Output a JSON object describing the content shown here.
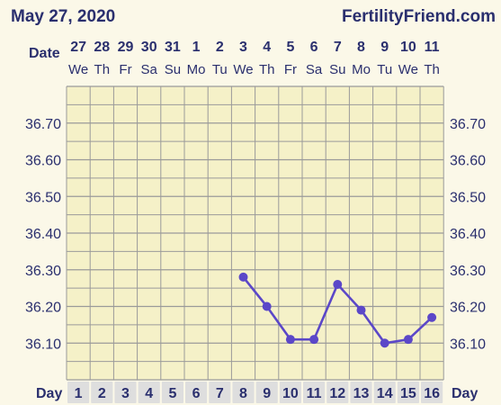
{
  "header": {
    "date": "May 27, 2020",
    "site": "FertilityFriend.com"
  },
  "chart_data": {
    "type": "line",
    "title": "",
    "row_labels": {
      "date": "Date",
      "day": "Day"
    },
    "dates": [
      "27",
      "28",
      "29",
      "30",
      "31",
      "1",
      "2",
      "3",
      "4",
      "5",
      "6",
      "7",
      "8",
      "9",
      "10",
      "11"
    ],
    "weekdays": [
      "We",
      "Th",
      "Fr",
      "Sa",
      "Su",
      "Mo",
      "Tu",
      "We",
      "Th",
      "Fr",
      "Sa",
      "Su",
      "Mo",
      "Tu",
      "We",
      "Th"
    ],
    "days": [
      1,
      2,
      3,
      4,
      5,
      6,
      7,
      8,
      9,
      10,
      11,
      12,
      13,
      14,
      15,
      16
    ],
    "ylim": [
      36.0,
      36.8
    ],
    "y_ticks": [
      "36.70",
      "36.60",
      "36.50",
      "36.40",
      "36.30",
      "36.20",
      "36.10"
    ],
    "series": [
      {
        "x": [
          8,
          9,
          10,
          11,
          12,
          13,
          14,
          15,
          16
        ],
        "values": [
          36.28,
          36.2,
          36.11,
          36.11,
          36.26,
          36.19,
          36.1,
          36.11,
          36.17
        ]
      }
    ],
    "colors": {
      "line": "#5b47c8",
      "grid": "#9a9a9a",
      "background": "#fbf8e8",
      "plot_background": "#f5f1c8",
      "day_cell": "#dedede",
      "text": "#2a2f6e"
    },
    "grid": true
  }
}
